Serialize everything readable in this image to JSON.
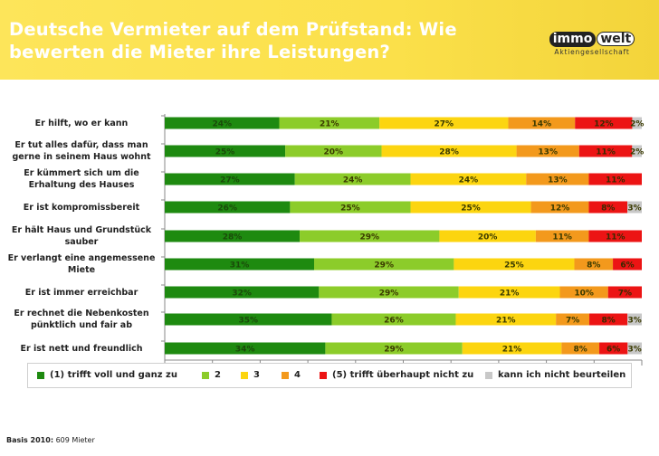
{
  "header": {
    "title": "Deutsche Vermieter auf dem Prüfstand: Wie bewerten die Mieter ihre Leistungen?",
    "logo_left": "immo",
    "logo_right": "welt",
    "logo_sub": "Aktiengesellschaft"
  },
  "footnote": {
    "label": "Basis 2010:",
    "text": "609 Mieter"
  },
  "colors": {
    "s1": "#1e8a10",
    "s2": "#8ccc2a",
    "s3": "#fcd510",
    "s4": "#f3991c",
    "s5": "#ec1414",
    "s6": "#c8c8c8",
    "header_bg": "#fbe04a"
  },
  "chart_data": {
    "type": "bar",
    "orientation": "horizontal",
    "stacked": true,
    "normalized": true,
    "categories": [
      "Er hilft, wo er kann",
      "Er tut alles dafür, dass man gerne in seinem Haus wohnt",
      "Er kümmert sich um die Erhaltung des Hauses",
      "Er ist kompromissbereit",
      "Er hält Haus und Grundstück sauber",
      "Er verlangt eine angemessene Miete",
      "Er ist immer erreichbar",
      "Er rechnet die Nebenkosten pünktlich und fair ab",
      "Er ist nett und freundlich"
    ],
    "series": [
      {
        "name": "(1) trifft voll und ganz zu",
        "values": [
          24,
          25,
          27,
          26,
          28,
          31,
          32,
          35,
          34
        ]
      },
      {
        "name": "2",
        "values": [
          21,
          20,
          24,
          25,
          29,
          29,
          29,
          26,
          29
        ]
      },
      {
        "name": "3",
        "values": [
          27,
          28,
          24,
          25,
          20,
          25,
          21,
          21,
          21
        ]
      },
      {
        "name": "4",
        "values": [
          14,
          13,
          13,
          12,
          11,
          8,
          10,
          7,
          8
        ]
      },
      {
        "name": "(5) trifft überhaupt nicht zu",
        "values": [
          12,
          11,
          11,
          8,
          11,
          6,
          7,
          8,
          6
        ]
      },
      {
        "name": "kann ich nicht beurteilen",
        "values": [
          2,
          2,
          null,
          3,
          null,
          null,
          null,
          3,
          3
        ]
      }
    ],
    "value_labels": [
      [
        "24%",
        "21%",
        "27%",
        "14%",
        "12%",
        "2%"
      ],
      [
        "25%",
        "20%",
        "28%",
        "13%",
        "11%",
        "2%"
      ],
      [
        "27%",
        "24%",
        "24%",
        "13%",
        "11%",
        ""
      ],
      [
        "26%",
        "25%",
        "25%",
        "12%",
        "8%",
        "3%"
      ],
      [
        "28%",
        "29%",
        "20%",
        "11%",
        "11%",
        ""
      ],
      [
        "31%",
        "29%",
        "25%",
        "8%",
        "6%",
        ""
      ],
      [
        "32%",
        "29%",
        "21%",
        "10%",
        "7%",
        ""
      ],
      [
        "35%",
        "26%",
        "21%",
        "7%",
        "8%",
        "3%"
      ],
      [
        "34%",
        "29%",
        "21%",
        "8%",
        "6%",
        "3%"
      ]
    ],
    "xlim": [
      0,
      100
    ],
    "legend": "bottom",
    "grid": false
  }
}
